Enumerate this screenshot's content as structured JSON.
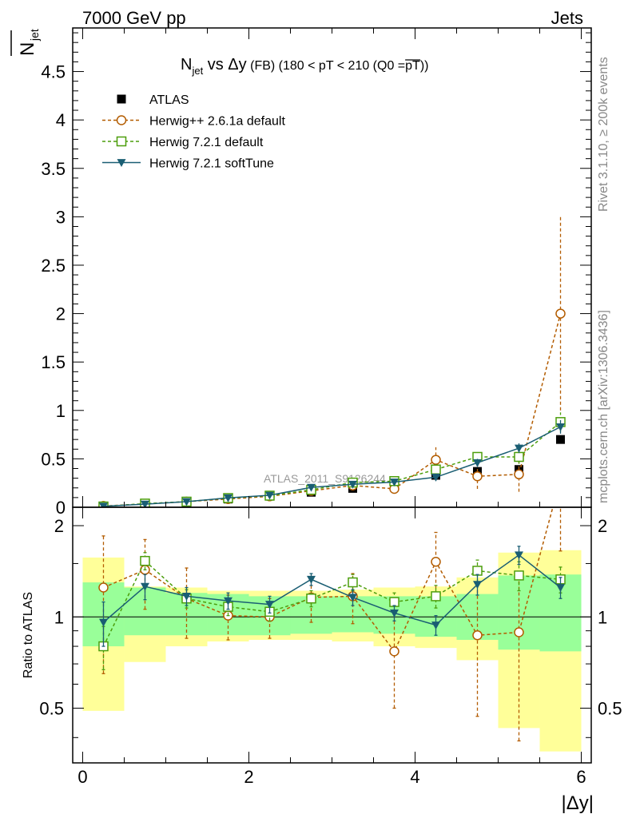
{
  "header": {
    "left": "7000 GeV pp",
    "right": "Jets"
  },
  "side_labels": {
    "rivet": "Rivet 3.1.10, ≥ 200k events",
    "mcplots": "mcplots.cern.ch [arXiv:1306.3436]"
  },
  "chart_data": {
    "type": "scatter",
    "title": "N_jet vs Δy (FB) (180 < pT < 210 (Q0 = pT))",
    "title_parts": {
      "main": "N",
      "sub": "jet",
      "vs": " vs Δy",
      "fb": " (FB)",
      "cut": " (180 < pT < 210 (Q0 =",
      "bar": "pT",
      "close": "))"
    },
    "watermark": "ATLAS_2011_S9126244",
    "xlabel": "|Δy|",
    "ylabel_main": "N",
    "ylabel_sub": "jet",
    "ylabel_ratio": "Ratio to ATLAS",
    "xlim": [
      -0.12,
      6.12
    ],
    "ylim": [
      0,
      4.95
    ],
    "ratio_ylim": [
      0.33,
      2.3
    ],
    "x_ticks": [
      0,
      2,
      4,
      6
    ],
    "y_ticks": [
      0,
      0.5,
      1,
      1.5,
      2,
      2.5,
      3,
      3.5,
      4,
      4.5
    ],
    "ratio_ticks": [
      0.5,
      1,
      2
    ],
    "x": [
      0.25,
      0.75,
      1.25,
      1.75,
      2.25,
      2.75,
      3.25,
      3.75,
      4.25,
      4.75,
      5.25,
      5.75
    ],
    "bins": [
      [
        0,
        0.5
      ],
      [
        0.5,
        1.0
      ],
      [
        1.0,
        1.5
      ],
      [
        1.5,
        2.0
      ],
      [
        2.0,
        2.5
      ],
      [
        2.5,
        3.0
      ],
      [
        3.0,
        3.5
      ],
      [
        3.5,
        4.0
      ],
      [
        4.0,
        4.5
      ],
      [
        4.5,
        5.0
      ],
      [
        5.0,
        5.5
      ],
      [
        5.5,
        6.0
      ]
    ],
    "data": {
      "name": "ATLAS",
      "values": [
        0.01,
        0.025,
        0.05,
        0.085,
        0.115,
        0.155,
        0.195,
        0.245,
        0.33,
        0.37,
        0.39,
        0.7
      ]
    },
    "band_green": [
      [
        0.8,
        1.3
      ],
      [
        0.87,
        1.25
      ],
      [
        0.87,
        1.2
      ],
      [
        0.87,
        1.19
      ],
      [
        0.87,
        1.17
      ],
      [
        0.88,
        1.17
      ],
      [
        0.89,
        1.17
      ],
      [
        0.88,
        1.17
      ],
      [
        0.86,
        1.17
      ],
      [
        0.84,
        1.19
      ],
      [
        0.78,
        1.37
      ],
      [
        0.77,
        1.38
      ]
    ],
    "band_yellow": [
      [
        0.49,
        1.57
      ],
      [
        0.71,
        1.26
      ],
      [
        0.8,
        1.25
      ],
      [
        0.83,
        1.22
      ],
      [
        0.84,
        1.22
      ],
      [
        0.84,
        1.22
      ],
      [
        0.83,
        1.23
      ],
      [
        0.8,
        1.25
      ],
      [
        0.79,
        1.26
      ],
      [
        0.72,
        1.35
      ],
      [
        0.43,
        1.63
      ],
      [
        0.36,
        1.66
      ]
    ],
    "series": [
      {
        "name": "Herwig++ 2.6.1a default",
        "color": "#b35c00",
        "dash": true,
        "marker": "circle",
        "values": [
          0.013,
          0.034,
          0.058,
          0.085,
          0.113,
          0.17,
          0.225,
          0.19,
          0.49,
          0.32,
          0.34,
          2.0
        ],
        "errors": [
          0.008,
          0.01,
          0.012,
          0.015,
          0.018,
          0.03,
          0.04,
          0.05,
          0.13,
          0.13,
          0.18,
          1.0
        ],
        "ratio": [
          1.25,
          1.43,
          1.15,
          1.01,
          1.0,
          1.16,
          1.17,
          0.77,
          1.52,
          0.87,
          0.89,
          2.85
        ],
        "ratio_err": [
          0.6,
          0.37,
          0.3,
          0.17,
          0.15,
          0.2,
          0.22,
          0.27,
          0.38,
          0.4,
          0.5,
          1.2
        ]
      },
      {
        "name": "Herwig 7.2.1 default",
        "color": "#4c9e0b",
        "dash": true,
        "marker": "square",
        "values": [
          0.008,
          0.038,
          0.058,
          0.095,
          0.12,
          0.18,
          0.255,
          0.27,
          0.39,
          0.52,
          0.52,
          0.88
        ],
        "errors": [
          0.004,
          0.006,
          0.008,
          0.01,
          0.012,
          0.015,
          0.02,
          0.025,
          0.04,
          0.05,
          0.07,
          0.1
        ],
        "ratio": [
          0.8,
          1.53,
          1.15,
          1.08,
          1.04,
          1.15,
          1.3,
          1.12,
          1.17,
          1.42,
          1.37,
          1.33
        ],
        "ratio_err": [
          0.13,
          0.1,
          0.08,
          0.07,
          0.07,
          0.07,
          0.08,
          0.08,
          0.1,
          0.12,
          0.15,
          0.13
        ]
      },
      {
        "name": "Herwig 7.2.1 softTune",
        "color": "#1a5e73",
        "dash": false,
        "marker": "triangle",
        "values": [
          0.01,
          0.032,
          0.058,
          0.097,
          0.124,
          0.205,
          0.237,
          0.26,
          0.31,
          0.46,
          0.61,
          0.83
        ],
        "errors": [
          0.004,
          0.006,
          0.007,
          0.009,
          0.011,
          0.015,
          0.018,
          0.02,
          0.03,
          0.04,
          0.05,
          0.07
        ],
        "ratio": [
          0.96,
          1.26,
          1.17,
          1.13,
          1.1,
          1.33,
          1.16,
          1.03,
          0.94,
          1.28,
          1.6,
          1.25
        ],
        "ratio_err": [
          0.16,
          0.12,
          0.08,
          0.07,
          0.07,
          0.06,
          0.07,
          0.06,
          0.07,
          0.1,
          0.11,
          0.1
        ]
      }
    ]
  }
}
